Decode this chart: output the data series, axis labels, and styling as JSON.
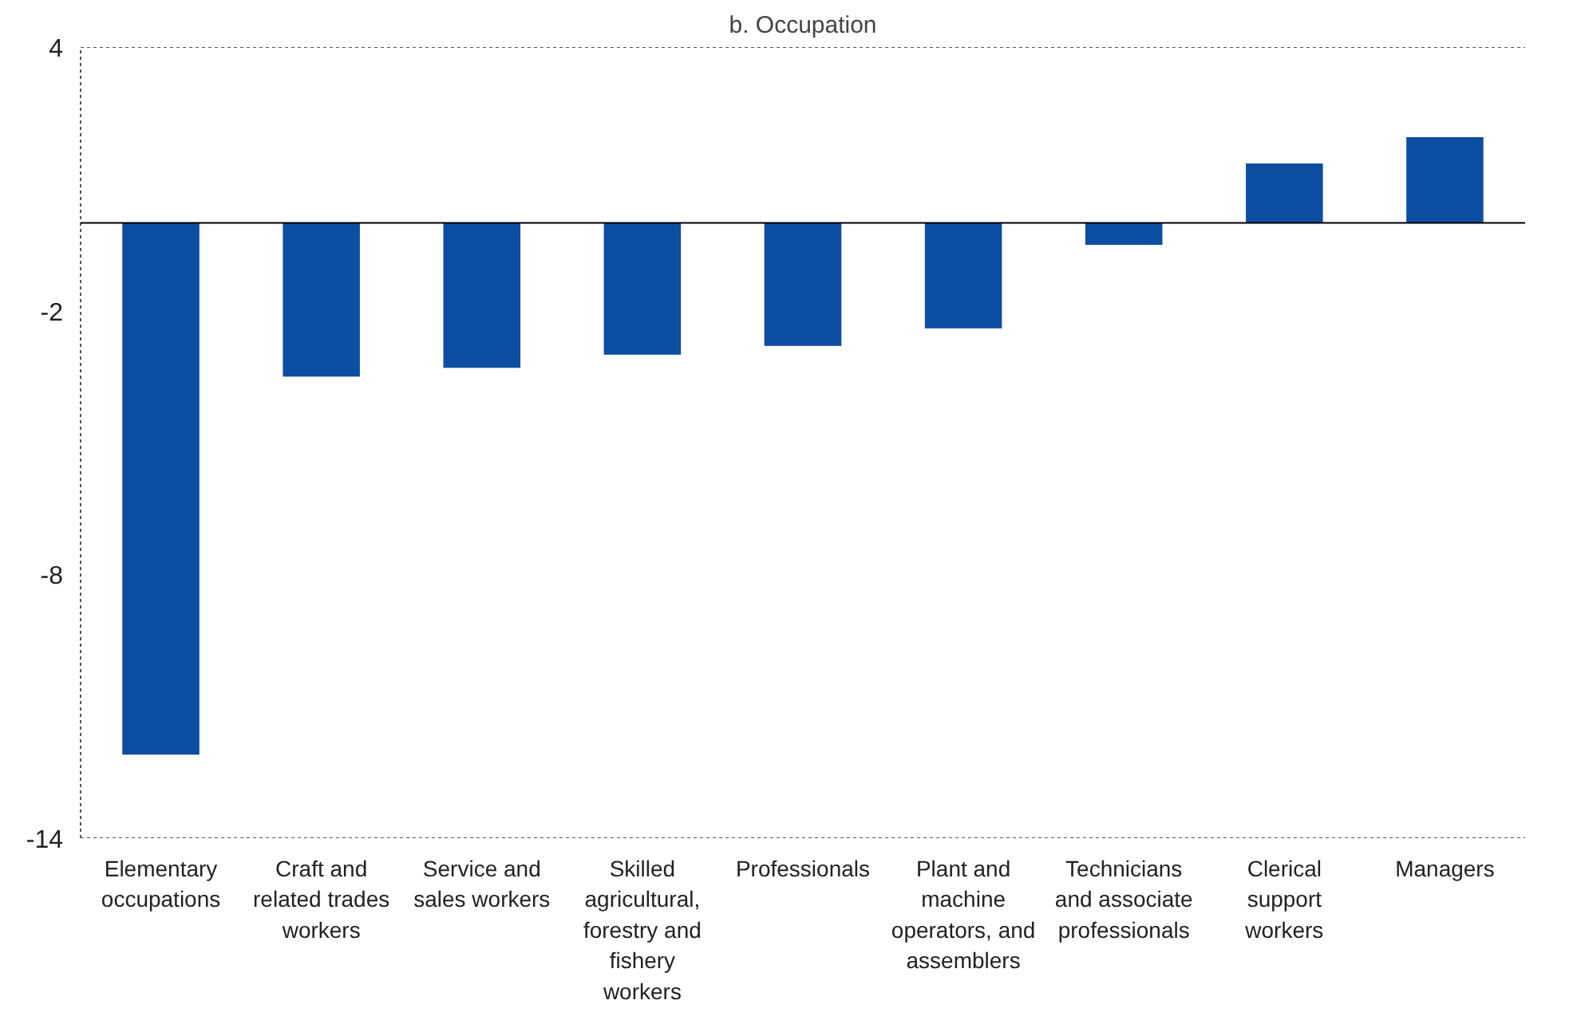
{
  "chart_data": {
    "type": "bar",
    "title": "b. Occupation",
    "categories": [
      "Elementary occupations",
      "Craft and related trades workers",
      "Service and sales workers",
      "Skilled agricultural, forestry and fishery workers",
      "Professionals",
      "Plant and machine operators, and assemblers",
      "Technicians and associate professionals",
      "Clerical support workers",
      "Managers"
    ],
    "values": [
      -12.1,
      -3.5,
      -3.3,
      -3.0,
      -2.8,
      -2.4,
      -0.5,
      1.35,
      1.95
    ],
    "color": "#0b4ea2",
    "ylim": [
      -14,
      4
    ],
    "yticks": [
      4,
      -2,
      -8,
      -14
    ],
    "ref_lines": [
      {
        "axis": "y",
        "value": 0,
        "color": "#000000"
      }
    ],
    "grid": false
  }
}
